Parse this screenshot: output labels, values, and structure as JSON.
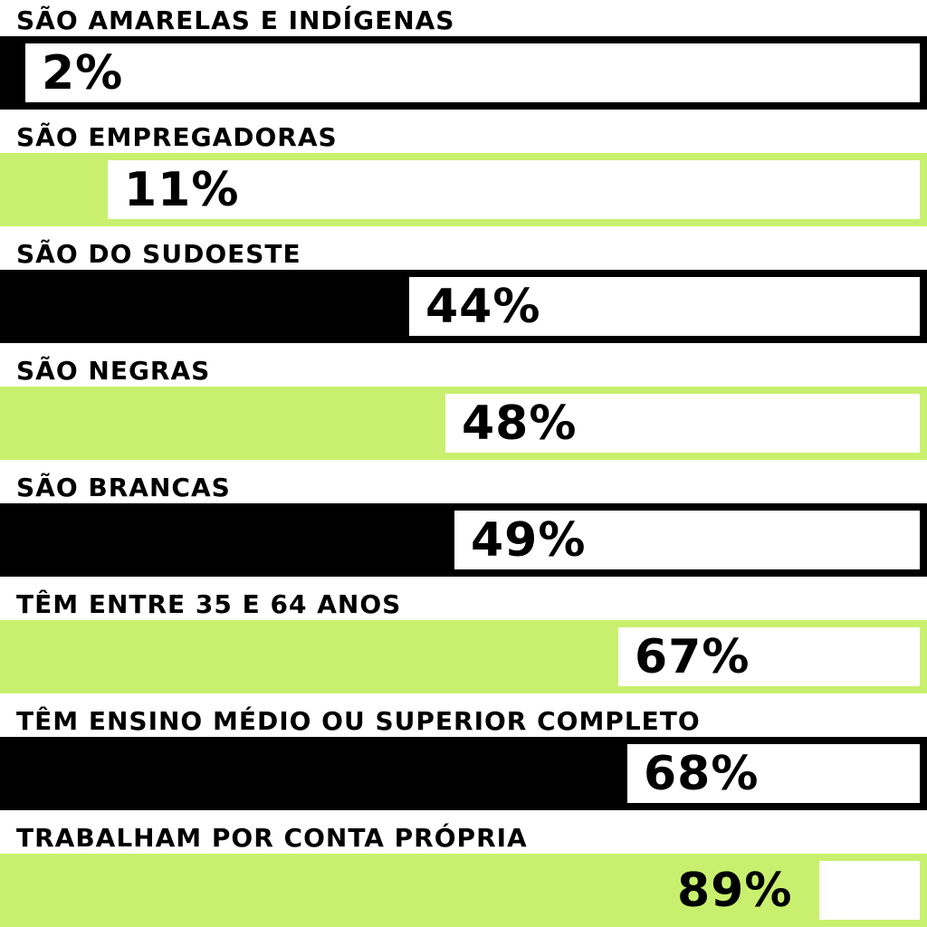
{
  "chart_data": {
    "type": "bar",
    "orientation": "horizontal",
    "xlim": [
      0,
      100
    ],
    "categories": [
      "SÃO AMARELAS E INDÍGENAS",
      "SÃO EMPREGADORAS",
      "SÃO DO SUDOESTE",
      "SÃO NEGRAS",
      "SÃO BRANCAS",
      "TÊM ENTRE 35 E 64 ANOS",
      "TÊM ENSINO MÉDIO OU SUPERIOR COMPLETO",
      "TRABALHAM POR CONTA PRÓPRIA"
    ],
    "values": [
      2,
      11,
      44,
      48,
      49,
      67,
      68,
      89
    ],
    "value_labels": [
      "2%",
      "11%",
      "44%",
      "48%",
      "49%",
      "67%",
      "68%",
      "89%"
    ],
    "bar_colors": [
      "#000000",
      "#c8f06e",
      "#000000",
      "#c8f06e",
      "#000000",
      "#c8f06e",
      "#000000",
      "#c8f06e"
    ],
    "track_color": "#ffffff",
    "text_color": "#000000"
  }
}
